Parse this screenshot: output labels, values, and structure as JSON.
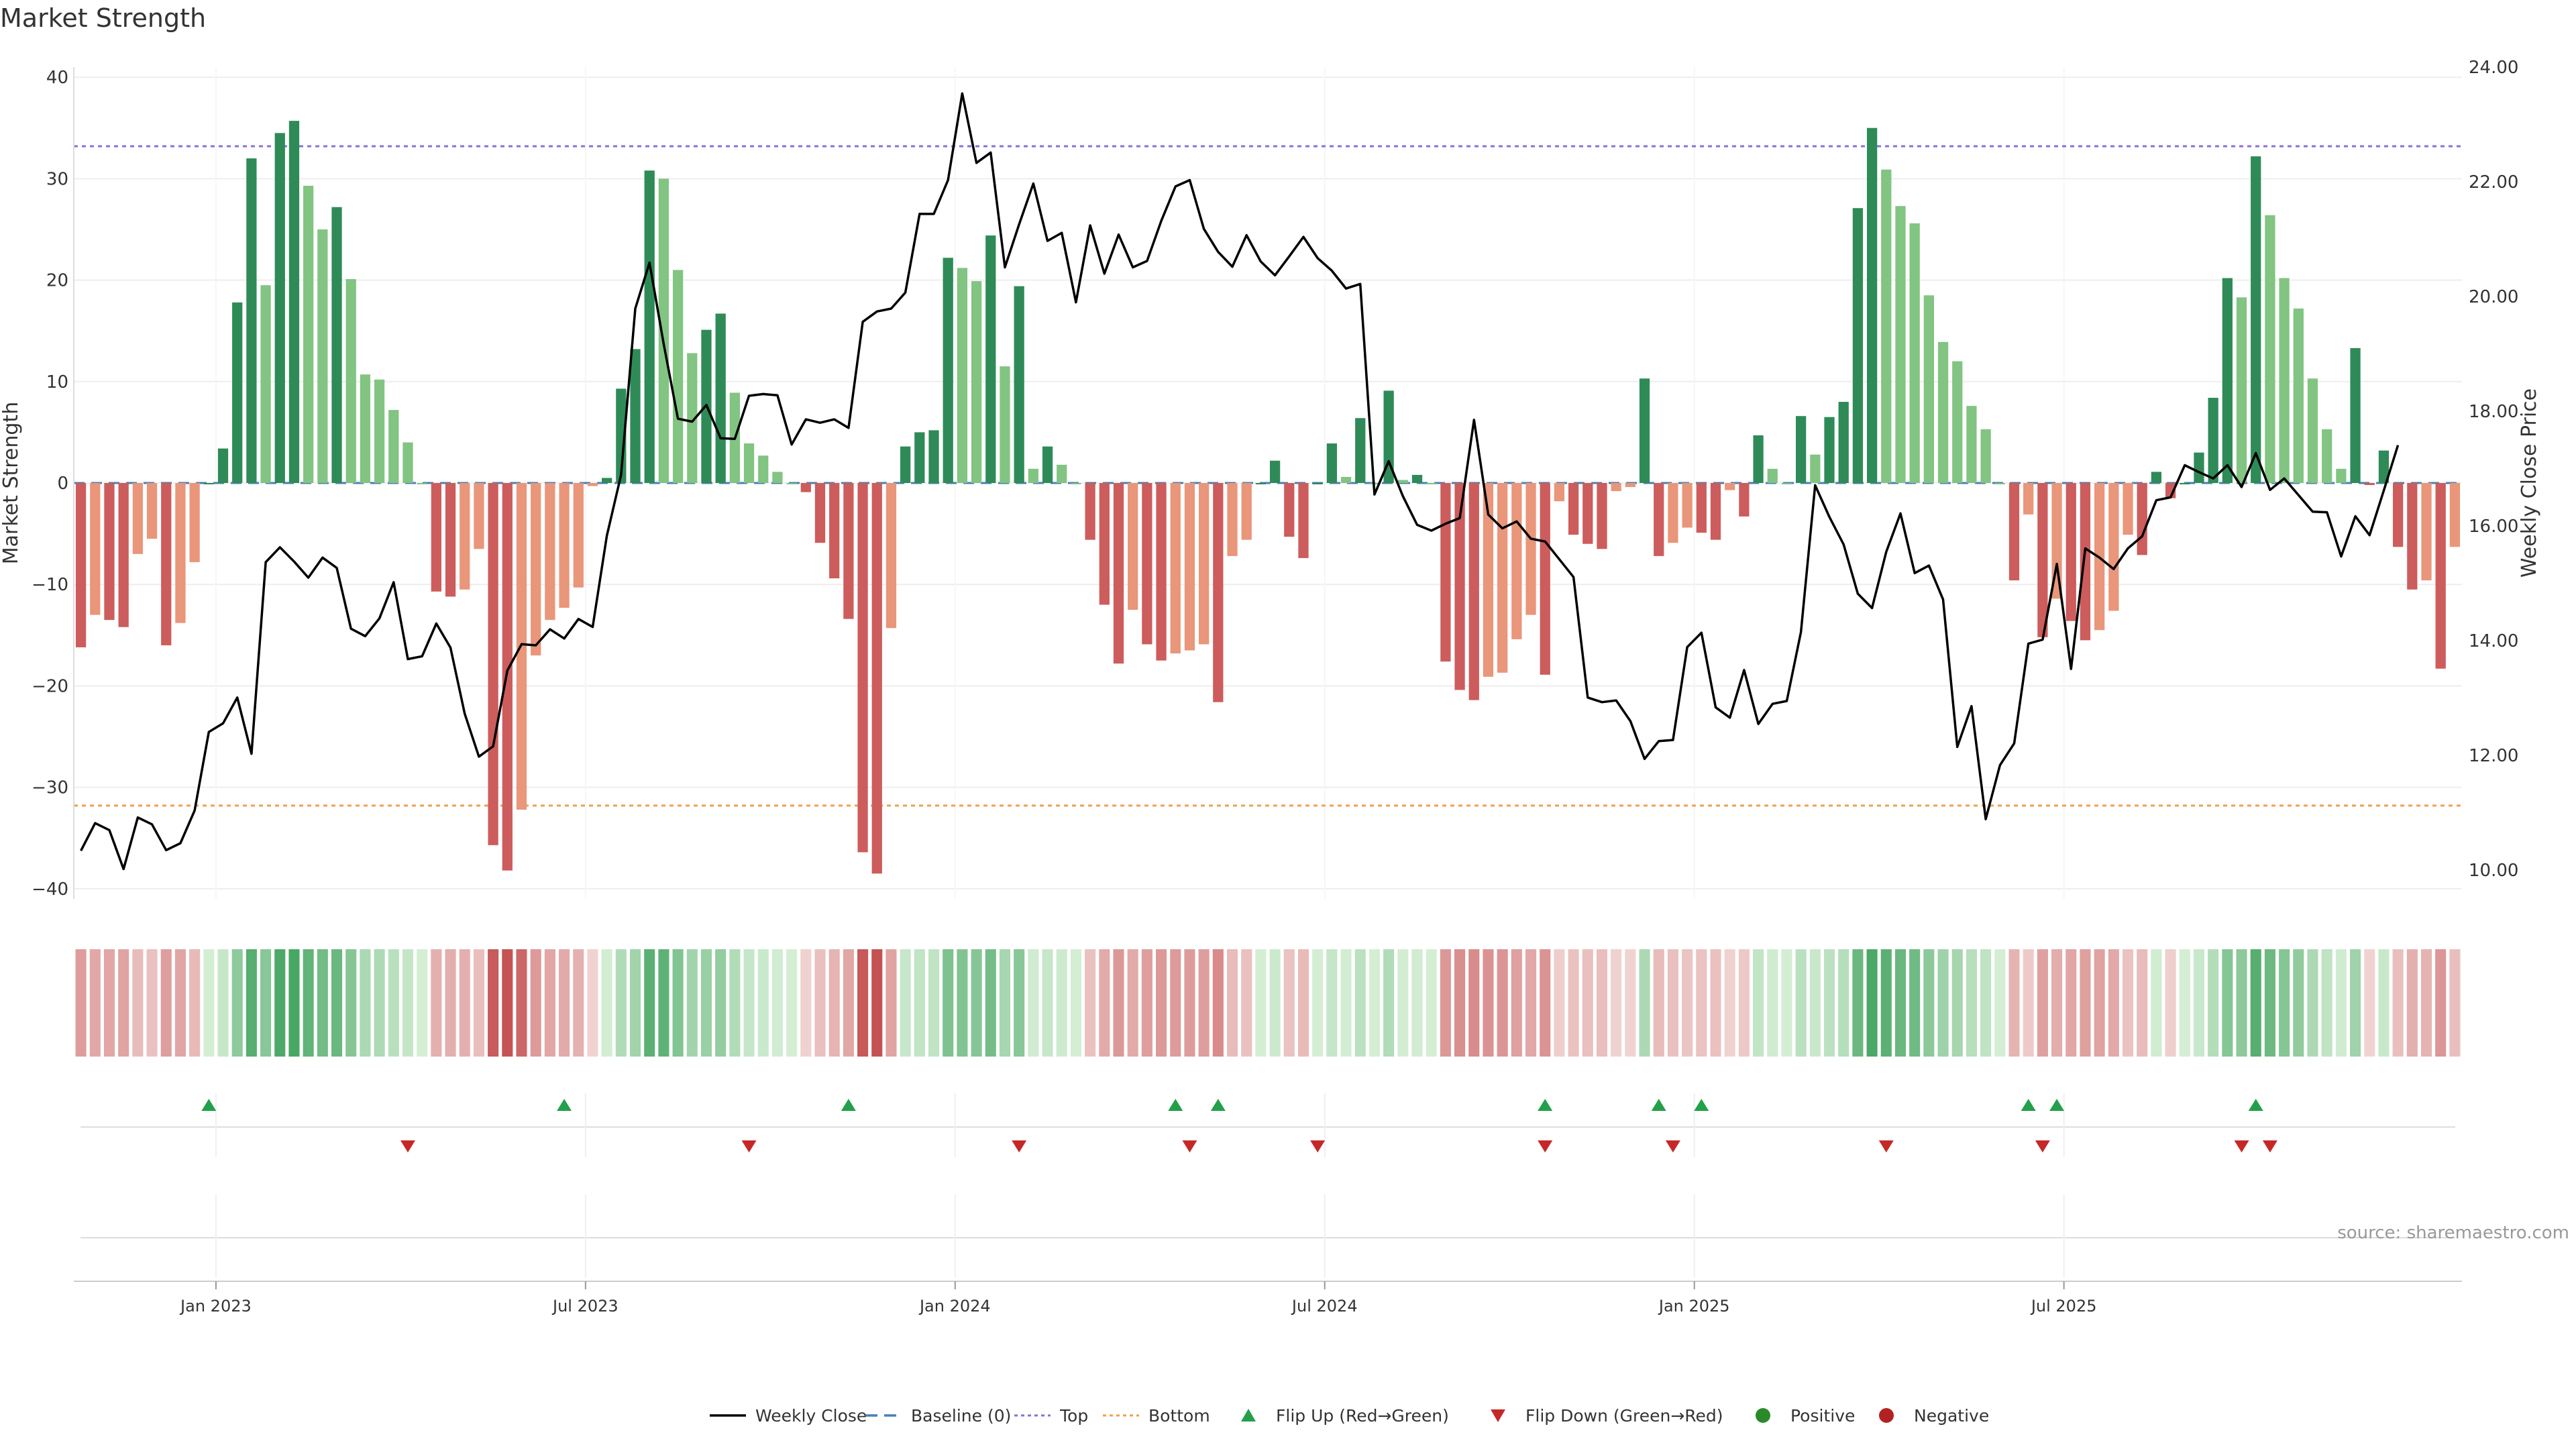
{
  "title": "Market Strength",
  "source": "source: sharemaestro.com",
  "colors": {
    "dark_green": "#2e8b57",
    "light_green": "#82c482",
    "dark_red": "#cd5c5c",
    "light_red": "#e9967a",
    "top_line": "#8a6fd8",
    "bottom_line": "#f0a04b",
    "baseline": "#4a7fb5",
    "price_line": "#000000",
    "flip_up": "#22a04a",
    "flip_down": "#c62828",
    "positive": "#2a8a2a",
    "negative": "#b22222",
    "grid": "#eeeeee"
  },
  "chart_data": {
    "type": "bar",
    "title": "Market Strength",
    "ylabel": "Market Strength",
    "y2label": "Weekly Close Price",
    "ylim": [
      -41,
      41
    ],
    "y2lim": [
      9.5,
      24.0
    ],
    "yticks": [
      -40,
      -30,
      -20,
      -10,
      0,
      10,
      20,
      30,
      40
    ],
    "y2ticks": [
      "10.00",
      "12.00",
      "14.00",
      "16.00",
      "18.00",
      "20.00",
      "22.00",
      "24.00"
    ],
    "y2tick_values": [
      10,
      12,
      14,
      16,
      18,
      20,
      22,
      24
    ],
    "top_level": 33.2,
    "bottom_level": -31.8,
    "xticks": [
      {
        "label": "Jan 2023",
        "index": 9.5
      },
      {
        "label": "Jul 2023",
        "index": 35.5
      },
      {
        "label": "Jan 2024",
        "index": 61.5
      },
      {
        "label": "Jul 2024",
        "index": 87.5
      },
      {
        "label": "Jan 2025",
        "index": 113.5
      },
      {
        "label": "Jul 2025",
        "index": 139.5
      }
    ],
    "strength": [
      -16.2,
      -13,
      -13.5,
      -14.2,
      -7,
      -5.5,
      -16,
      -13.8,
      -7.8,
      0,
      3.4,
      17.8,
      32,
      19.5,
      34.5,
      35.7,
      29.3,
      25,
      27.2,
      20.1,
      10.7,
      10.2,
      7.2,
      4,
      0,
      -10.7,
      -11.2,
      -10.5,
      -6.5,
      -35.7,
      -38.2,
      -32.2,
      -17,
      -13.5,
      -12.3,
      -10.3,
      -0.3,
      0.5,
      9.3,
      13.2,
      30.8,
      30,
      21,
      12.8,
      15.1,
      16.7,
      8.9,
      3.9,
      2.7,
      1.1,
      0,
      -0.9,
      -5.9,
      -9.4,
      -13.4,
      -36.4,
      -38.5,
      -14.3,
      3.6,
      5,
      5.2,
      22.2,
      21.2,
      19.9,
      24.4,
      11.5,
      19.4,
      1.4,
      3.6,
      1.8,
      0,
      -5.6,
      -12,
      -17.8,
      -12.5,
      -15.9,
      -17.5,
      -16.8,
      -16.5,
      -15.9,
      -21.6,
      -7.2,
      -5.6,
      0,
      2.2,
      -5.3,
      -7.4,
      0,
      3.9,
      0.6,
      6.4,
      0,
      9.1,
      0.3,
      0.8,
      0,
      -17.6,
      -20.4,
      -21.4,
      -19.1,
      -18.7,
      -15.4,
      -13,
      -18.9,
      -1.8,
      -5.1,
      -6,
      -6.5,
      -0.8,
      -0.4,
      10.3,
      -7.2,
      -5.9,
      -4.4,
      -4.9,
      -5.6,
      -0.7,
      -3.3,
      4.7,
      1.4,
      0,
      6.6,
      2.8,
      6.5,
      8,
      27.1,
      35,
      30.9,
      27.3,
      25.6,
      18.5,
      13.9,
      12,
      7.6,
      5.3,
      0,
      -9.6,
      -3.1,
      -15.2,
      -11.4,
      -13.6,
      -15.5,
      -14.5,
      -12.6,
      -5.1,
      -7.1,
      1.1,
      -1.5,
      0,
      3,
      8.4,
      20.2,
      18.3,
      32.2,
      26.4,
      20.2,
      17.2,
      10.3,
      5.3,
      1.4,
      13.3,
      -0.2,
      3.2,
      -6.3,
      -10.5,
      -9.6,
      -18.3,
      -6.3
    ],
    "weekly_close": [
      10.34,
      10.82,
      10.7,
      10.02,
      10.92,
      10.8,
      10.35,
      10.47,
      11.04,
      12.41,
      12.56,
      13.01,
      12.03,
      15.37,
      15.63,
      15.38,
      15.1,
      15.45,
      15.27,
      14.21,
      14.08,
      14.39,
      15.02,
      13.68,
      13.73,
      14.3,
      13.88,
      12.73,
      11.98,
      12.16,
      13.48,
      13.94,
      13.92,
      14.2,
      14.04,
      14.38,
      14.24,
      15.83,
      16.89,
      19.79,
      20.59,
      19.17,
      17.87,
      17.82,
      18.11,
      17.53,
      17.52,
      18.27,
      18.3,
      18.28,
      17.42,
      17.86,
      17.8,
      17.86,
      17.71,
      19.56,
      19.74,
      19.79,
      20.07,
      21.44,
      21.44,
      22.03,
      23.54,
      22.33,
      22.51,
      20.51,
      21.26,
      21.97,
      20.97,
      21.11,
      19.9,
      21.24,
      20.4,
      21.08,
      20.51,
      20.62,
      21.32,
      21.92,
      22.03,
      21.18,
      20.78,
      20.52,
      21.07,
      20.61,
      20.37,
      20.7,
      21.04,
      20.67,
      20.45,
      20.14,
      20.22,
      16.55,
      17.13,
      16.52,
      16.02,
      15.92,
      16.04,
      16.14,
      17.85,
      16.2,
      15.96,
      16.08,
      15.78,
      15.73,
      15.42,
      15.11,
      13.01,
      12.93,
      12.96,
      12.6,
      11.94,
      12.25,
      12.27,
      13.89,
      14.14,
      12.84,
      12.66,
      13.49,
      12.55,
      12.9,
      12.95,
      14.15,
      16.71,
      16.16,
      15.68,
      14.82,
      14.57,
      15.55,
      16.22,
      15.18,
      15.31,
      14.72,
      12.15,
      12.86,
      10.89,
      11.83,
      12.21,
      13.95,
      14.02,
      15.34,
      13.51,
      15.61,
      15.45,
      15.25,
      15.61,
      15.82,
      16.45,
      16.5,
      17.06,
      16.94,
      16.83,
      17.06,
      16.68,
      17.27,
      16.63,
      16.83,
      16.54,
      16.25,
      16.24,
      15.47,
      16.17,
      15.84,
      16.62,
      17.41
    ]
  },
  "flip_up_indices": [
    9,
    34,
    54,
    77,
    80,
    103,
    111,
    114,
    137,
    139,
    153
  ],
  "flip_down_indices": [
    23,
    47,
    66,
    78,
    87,
    103,
    112,
    127,
    138,
    152,
    154
  ],
  "legend": [
    {
      "label": "Weekly Close",
      "symbol": "solid-line"
    },
    {
      "label": "Baseline (0)",
      "symbol": "dash-line"
    },
    {
      "label": "Top",
      "symbol": "dot-line-purple"
    },
    {
      "label": "Bottom",
      "symbol": "dot-line-orange"
    },
    {
      "label": "Flip Up (Red→Green)",
      "symbol": "triangle-up"
    },
    {
      "label": "Flip Down (Green→Red)",
      "symbol": "triangle-down"
    },
    {
      "label": "Positive",
      "symbol": "circle-green"
    },
    {
      "label": "Negative",
      "symbol": "circle-red"
    }
  ]
}
